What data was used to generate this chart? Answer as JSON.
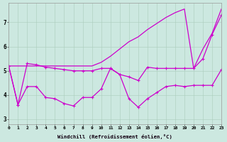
{
  "xlabel": "Windchill (Refroidissement éolien,°C)",
  "bg_color": "#cce8e0",
  "line_color": "#cc00cc",
  "xlim": [
    0,
    23
  ],
  "ylim": [
    2.8,
    7.8
  ],
  "yticks": [
    3,
    4,
    5,
    6,
    7
  ],
  "xticks": [
    0,
    1,
    2,
    3,
    4,
    5,
    6,
    7,
    8,
    9,
    10,
    11,
    12,
    13,
    14,
    15,
    16,
    17,
    18,
    19,
    20,
    21,
    22,
    23
  ],
  "line1_y": [
    5.2,
    5.2,
    5.2,
    5.2,
    5.2,
    5.2,
    5.2,
    5.2,
    5.2,
    5.2,
    5.35,
    5.6,
    5.9,
    6.2,
    6.4,
    6.7,
    6.95,
    7.2,
    7.4,
    7.55,
    5.1,
    5.9,
    6.55,
    7.55
  ],
  "line2_y": [
    5.2,
    3.6,
    5.3,
    5.25,
    5.15,
    5.1,
    5.05,
    5.0,
    5.0,
    5.0,
    5.1,
    5.1,
    4.85,
    4.75,
    4.6,
    5.15,
    5.1,
    5.1,
    5.1,
    5.1,
    5.1,
    5.5,
    6.5,
    7.3
  ],
  "line3_y": [
    5.2,
    3.6,
    4.35,
    4.35,
    3.9,
    3.85,
    3.65,
    3.55,
    3.9,
    3.9,
    4.25,
    5.1,
    4.85,
    3.85,
    3.5,
    3.85,
    4.1,
    4.35,
    4.4,
    4.35,
    4.4,
    4.4,
    4.4,
    5.05
  ]
}
